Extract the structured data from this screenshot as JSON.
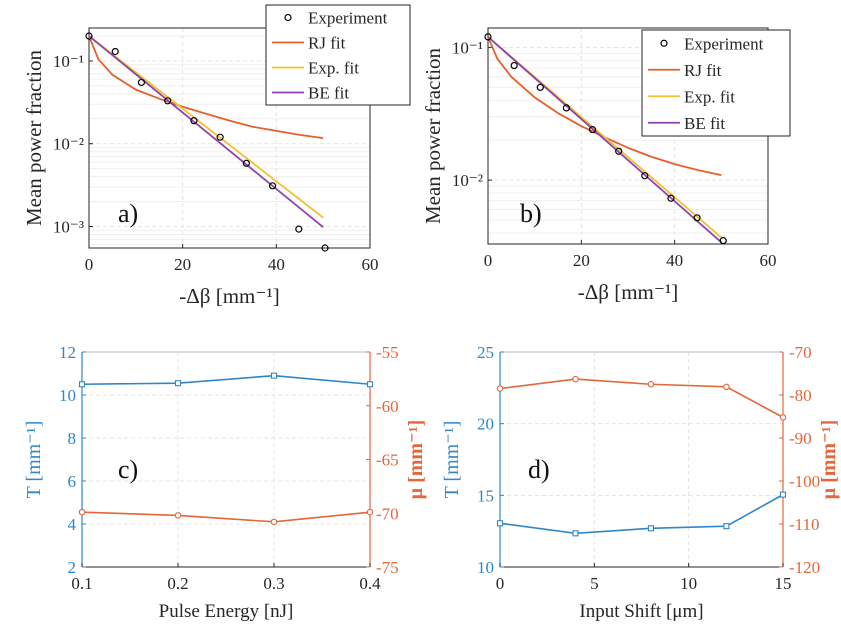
{
  "colors": {
    "experiment": "#000000",
    "rj": "#e5602b",
    "exp": "#f2c12e",
    "be": "#8f44ad",
    "left_axis": "#2f86c9",
    "right_axis": "#e3673a",
    "grid": "#e4e4e4"
  },
  "chart_data": [
    {
      "id": "a",
      "type": "line",
      "panel_label": "a)",
      "xlabel": "-Δβ [mm⁻¹]",
      "ylabel": "Mean power fraction",
      "xlim": [
        0,
        60
      ],
      "ylim": [
        0.00055,
        0.25
      ],
      "yscale": "log",
      "xticks": [
        0,
        20,
        40,
        60
      ],
      "xtick_labels": [
        "0",
        "20",
        "40",
        "60"
      ],
      "yticks": [
        0.001,
        0.01,
        0.1
      ],
      "ytick_labels": [
        "10⁻³",
        "10⁻²",
        "10⁻¹"
      ],
      "grid": true,
      "legend_position": "top-right",
      "series": [
        {
          "name": "Experiment",
          "kind": "markers",
          "x": [
            0,
            5.6,
            11.2,
            16.8,
            22.4,
            28.0,
            33.6,
            39.2,
            44.8,
            50.4
          ],
          "y": [
            0.2,
            0.13,
            0.055,
            0.033,
            0.019,
            0.012,
            0.0058,
            0.0031,
            0.00093,
            0.00055
          ]
        },
        {
          "name": "RJ fit",
          "kind": "line",
          "x": [
            0,
            2,
            5,
            10,
            15,
            20,
            25,
            30,
            35,
            40,
            45,
            50
          ],
          "y": [
            0.2,
            0.105,
            0.068,
            0.045,
            0.035,
            0.028,
            0.023,
            0.019,
            0.016,
            0.0143,
            0.0128,
            0.0117
          ]
        },
        {
          "name": "Exp. fit",
          "kind": "line",
          "x": [
            0,
            50
          ],
          "y": [
            0.2,
            0.00128
          ]
        },
        {
          "name": "BE fit",
          "kind": "line",
          "x": [
            0,
            50
          ],
          "y": [
            0.2,
            0.00098
          ]
        }
      ]
    },
    {
      "id": "b",
      "type": "line",
      "panel_label": "b)",
      "xlabel": "-Δβ [mm⁻¹]",
      "ylabel": "Mean power fraction",
      "xlim": [
        0,
        60
      ],
      "ylim": [
        0.0033,
        0.14
      ],
      "yscale": "log",
      "xticks": [
        0,
        20,
        40,
        60
      ],
      "xtick_labels": [
        "0",
        "20",
        "40",
        "60"
      ],
      "yticks": [
        0.01,
        0.1
      ],
      "ytick_labels": [
        "10⁻²",
        "10⁻¹"
      ],
      "grid": true,
      "legend_position": "top-right",
      "series": [
        {
          "name": "Experiment",
          "kind": "markers",
          "x": [
            0,
            5.6,
            11.2,
            16.8,
            22.4,
            28.0,
            33.6,
            39.2,
            44.8,
            50.4
          ],
          "y": [
            0.12,
            0.073,
            0.05,
            0.035,
            0.024,
            0.0165,
            0.0108,
            0.0073,
            0.0052,
            0.0035
          ]
        },
        {
          "name": "RJ fit",
          "kind": "line",
          "x": [
            0,
            2,
            5,
            10,
            15,
            20,
            25,
            30,
            35,
            40,
            45,
            50
          ],
          "y": [
            0.12,
            0.082,
            0.06,
            0.042,
            0.032,
            0.0255,
            0.021,
            0.0175,
            0.015,
            0.0132,
            0.0119,
            0.0109
          ]
        },
        {
          "name": "Exp. fit",
          "kind": "line",
          "x": [
            0,
            50
          ],
          "y": [
            0.12,
            0.0037
          ]
        },
        {
          "name": "BE fit",
          "kind": "line",
          "x": [
            0,
            50
          ],
          "y": [
            0.12,
            0.0034
          ]
        }
      ]
    },
    {
      "id": "c",
      "type": "line",
      "panel_label": "c)",
      "xlabel": "Pulse Energy [nJ]",
      "ylabel_left": "T [mm⁻¹]",
      "ylabel_right": "μ [mm⁻¹]",
      "xlim": [
        0.1,
        0.4
      ],
      "ylim_left": [
        2,
        12
      ],
      "ylim_right": [
        -75,
        -55
      ],
      "xticks": [
        0.1,
        0.2,
        0.3,
        0.4
      ],
      "xtick_labels": [
        "0.1",
        "0.2",
        "0.3",
        "0.4"
      ],
      "yticks_left": [
        2,
        4,
        6,
        8,
        10,
        12
      ],
      "ytick_labels_left": [
        "2",
        "4",
        "6",
        "8",
        "10",
        "12"
      ],
      "yticks_right": [
        -75,
        -70,
        -65,
        -60,
        -55
      ],
      "ytick_labels_right": [
        "-75",
        "-70",
        "-65",
        "-60",
        "-55"
      ],
      "grid": true,
      "series": [
        {
          "axis": "left",
          "x": [
            0.1,
            0.2,
            0.3,
            0.4
          ],
          "y": [
            10.5,
            10.55,
            10.9,
            10.5
          ]
        },
        {
          "axis": "right",
          "x": [
            0.1,
            0.2,
            0.3,
            0.4
          ],
          "y": [
            -69.9,
            -70.2,
            -70.8,
            -69.9
          ]
        }
      ]
    },
    {
      "id": "d",
      "type": "line",
      "panel_label": "d)",
      "xlabel": "Input Shift [μm]",
      "ylabel_left": "T [mm⁻¹]",
      "ylabel_right": "μ [mm⁻¹]",
      "xlim": [
        0,
        15
      ],
      "ylim_left": [
        10,
        25
      ],
      "ylim_right": [
        -120,
        -70
      ],
      "xticks": [
        0,
        5,
        10,
        15
      ],
      "xtick_labels": [
        "0",
        "5",
        "10",
        "15"
      ],
      "yticks_left": [
        10,
        15,
        20,
        25
      ],
      "ytick_labels_left": [
        "10",
        "15",
        "20",
        "25"
      ],
      "yticks_right": [
        -120,
        -110,
        -100,
        -90,
        -80,
        -70
      ],
      "ytick_labels_right": [
        "-120",
        "-110",
        "-100",
        "-90",
        "-80",
        "-70"
      ],
      "grid": true,
      "series": [
        {
          "axis": "left",
          "x": [
            0,
            4,
            8,
            12,
            15
          ],
          "y": [
            13.05,
            12.35,
            12.7,
            12.85,
            15.05
          ]
        },
        {
          "axis": "right",
          "x": [
            0,
            4,
            8,
            12,
            15
          ],
          "y": [
            -78.5,
            -76.3,
            -77.5,
            -78.1,
            -85.2
          ]
        }
      ]
    }
  ]
}
